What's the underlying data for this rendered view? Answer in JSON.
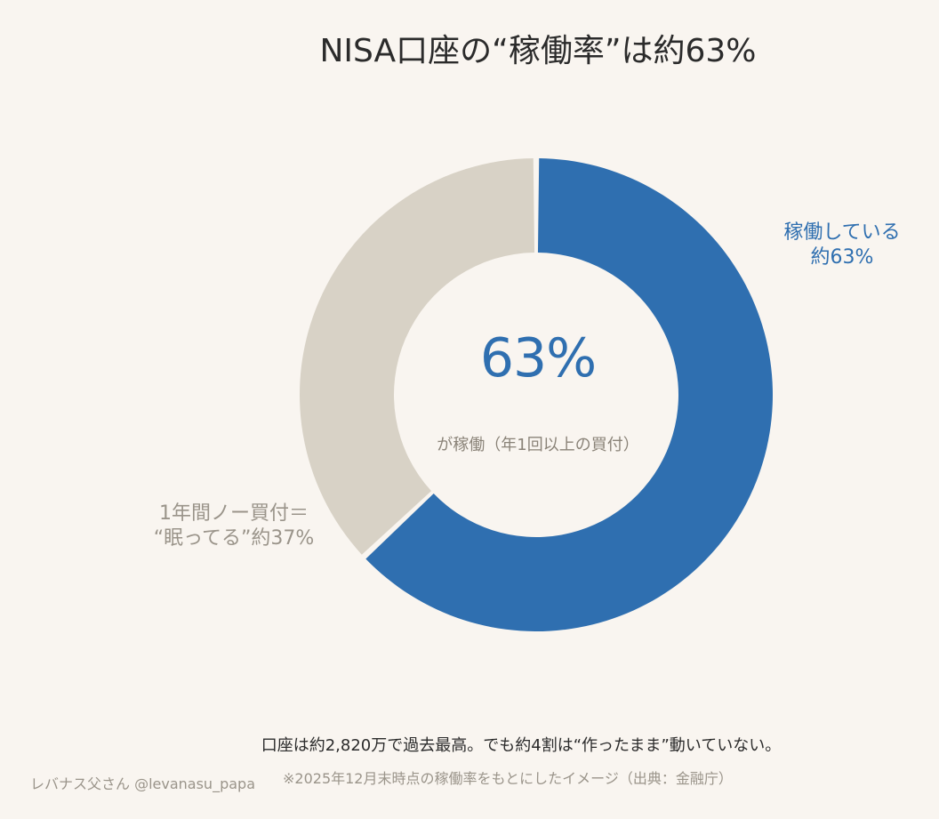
{
  "title": "NISA口座の“稼働率”は約63%",
  "chart_data": {
    "type": "pie",
    "variant": "donut",
    "categories": [
      "稼働している",
      "1年間ノー買付＝“眠ってる”"
    ],
    "values": [
      63,
      37
    ],
    "unit": "%",
    "colors": {
      "active": "#2f6fb0",
      "dormant": "#d8d2c6",
      "background": "#f9f5f0"
    },
    "center_value": "63%",
    "center_caption": "が稼働（年1回以上の買付）",
    "slice_labels": [
      {
        "line1": "稼働している",
        "line2": "約63%"
      },
      {
        "line1": "1年間ノー買付＝",
        "line2": "“眠ってる”約37%"
      }
    ]
  },
  "footer": {
    "note": "口座は約2,820万で過去最高。でも約4割は“作ったまま”動いていない。",
    "credit": "レバナス父さん @levanasu_papa",
    "source": "※2025年12月末時点の稼働率をもとにしたイメージ（出典：金融庁）"
  }
}
